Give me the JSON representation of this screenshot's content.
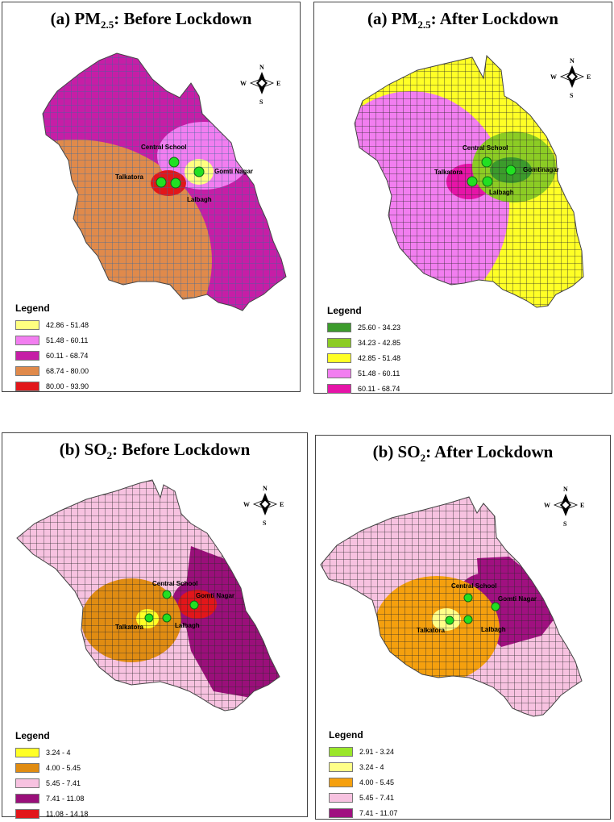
{
  "panels": [
    {
      "title_prefix": "(a) PM",
      "title_sub": "2.5",
      "title_suffix": ": Before Lockdown",
      "legend_title": "Legend",
      "legend": [
        {
          "label": "42.86 - 51.48",
          "color": "#ffff80"
        },
        {
          "label": "51.48 - 60.11",
          "color": "#f27ef0"
        },
        {
          "label": "60.11 - 68.74",
          "color": "#c61ea6"
        },
        {
          "label": "68.74 - 80.00",
          "color": "#e08a4b"
        },
        {
          "label": "80.00 - 93.90",
          "color": "#e2161a"
        }
      ],
      "sites": [
        "Central School",
        "Gomti Nagar",
        "Talkatora",
        "Lalbagh"
      ]
    },
    {
      "title_prefix": "(a) PM",
      "title_sub": "2.5",
      "title_suffix": ": After Lockdown",
      "legend_title": "Legend",
      "legend": [
        {
          "label": "25.60 - 34.23",
          "color": "#3c9b2c"
        },
        {
          "label": "34.23 - 42.85",
          "color": "#8ccc24"
        },
        {
          "label": "42.85 - 51.48",
          "color": "#ffff26"
        },
        {
          "label": "51.48 - 60.11",
          "color": "#f27ef0"
        },
        {
          "label": "60.11 - 68.74",
          "color": "#e614a8"
        }
      ],
      "sites": [
        "Central School",
        "Gomtinagar",
        "Talkatora",
        "Lalbagh"
      ]
    },
    {
      "title_prefix": "(b) SO",
      "title_sub": "2",
      "title_suffix": ": Before Lockdown",
      "legend_title": "Legend",
      "legend": [
        {
          "label": "3.24 - 4",
          "color": "#ffff26"
        },
        {
          "label": "4.00 - 5.45",
          "color": "#e08c12"
        },
        {
          "label": "5.45 - 7.41",
          "color": "#f7c2e0"
        },
        {
          "label": "7.41 - 11.08",
          "color": "#9a0f7a"
        },
        {
          "label": "11.08 - 14.18",
          "color": "#e2161a"
        }
      ],
      "sites": [
        "Central School",
        "Gomti Nagar",
        "Talkatora",
        "Lalbagh"
      ]
    },
    {
      "title_prefix": "(b) SO",
      "title_sub": "2",
      "title_suffix": ": After Lockdown",
      "legend_title": "Legend",
      "legend": [
        {
          "label": "2.91 - 3.24",
          "color": "#9ae62a"
        },
        {
          "label": "3.24 - 4",
          "color": "#ffff88"
        },
        {
          "label": "4.00 - 5.45",
          "color": "#f5a00e"
        },
        {
          "label": "5.45 - 7.41",
          "color": "#f7c2e0"
        },
        {
          "label": "7.41 - 11.07",
          "color": "#a01080"
        }
      ],
      "sites": [
        "Central School",
        "Gomti Nagar",
        "Talkatora",
        "Lalbagh"
      ]
    }
  ],
  "compass": {
    "n": "N",
    "s": "S",
    "e": "E",
    "w": "W"
  }
}
